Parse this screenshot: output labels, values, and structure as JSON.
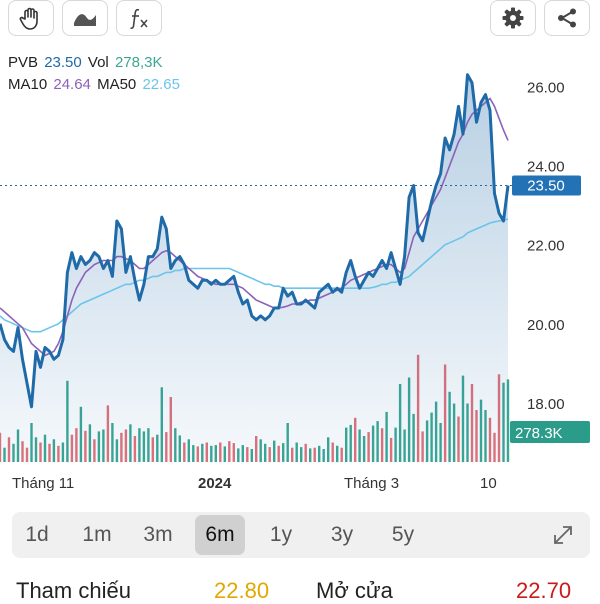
{
  "toolbar": {
    "left_icons": [
      "hand-icon",
      "wave-line-icon",
      "fx-icon"
    ],
    "right_icons": [
      "gear-icon",
      "share-icon"
    ]
  },
  "legend": {
    "symbol": "PVB",
    "price": "23.50",
    "vol_label": "Vol",
    "vol_value": "278,3K",
    "ma10_label": "MA10",
    "ma10_value": "24.64",
    "ma50_label": "MA50",
    "ma50_value": "22.65"
  },
  "colors": {
    "price": "#1f6aa8",
    "ma10": "#8b62b8",
    "ma50": "#6cc4ec",
    "vol_up": "#3aa794",
    "vol_down": "#e2717a",
    "price_badge": "#2372b6",
    "vol_badge": "#2b9c8a"
  },
  "chart_data": {
    "type": "line",
    "y_ticks": [
      "26.00",
      "24.00",
      "22.00",
      "20.00",
      "18.00"
    ],
    "ylim": [
      16.3,
      26.7
    ],
    "x_labels": [
      "Tháng 11",
      "2024",
      "Tháng 3",
      "10"
    ],
    "last_price_label": "23.50",
    "last_volume_label": "278.3K",
    "series": [
      {
        "name": "PVB",
        "values": [
          20,
          19.6,
          19.4,
          19.3,
          19.9,
          19.1,
          18.5,
          17.9,
          19.3,
          18.9,
          19.4,
          19.3,
          19.1,
          19.2,
          19.6,
          21.3,
          21.8,
          21.4,
          21.7,
          21.5,
          21.6,
          21.8,
          21.7,
          21.4,
          21.6,
          21.2,
          22.6,
          22.4,
          21.3,
          21.7,
          21.1,
          20.6,
          21.0,
          21.7,
          21.7,
          21.9,
          22.7,
          22.4,
          21.4,
          21.6,
          21.7,
          21.5,
          21.1,
          21.0,
          20.9,
          21.1,
          21.1,
          21.0,
          21.1,
          21.0,
          21.0,
          21.1,
          21.2,
          20.8,
          20.5,
          20.6,
          20.2,
          20.1,
          20.2,
          20.1,
          20.2,
          20.4,
          20.4,
          20.9,
          20.7,
          20.8,
          20.5,
          20.5,
          20.6,
          20.5,
          20.4,
          20.8,
          20.9,
          21.0,
          20.8,
          20.9,
          20.8,
          21.3,
          21.6,
          21.2,
          20.9,
          21.1,
          21.3,
          21.2,
          21.4,
          21.6,
          21.4,
          21.8,
          21.4,
          21.0,
          21.7,
          23.2,
          23.5,
          22.3,
          22.1,
          22.6,
          23.1,
          23.5,
          23.8,
          24.7,
          24.4,
          24.8,
          25.5,
          24.8,
          26.3,
          26.1,
          25.1,
          25.6,
          25.8,
          25.4,
          23.3,
          22.8,
          22.6,
          23.5
        ]
      },
      {
        "name": "MA10",
        "values": [
          20.4,
          20.3,
          20.2,
          20.1,
          20.0,
          19.9,
          19.7,
          19.5,
          19.4,
          19.3,
          19.2,
          19.25,
          19.3,
          19.5,
          19.8,
          20.2,
          20.6,
          20.9,
          21.1,
          21.3,
          21.4,
          21.5,
          21.55,
          21.6,
          21.6,
          21.6,
          21.7,
          21.7,
          21.65,
          21.6,
          21.5,
          21.4,
          21.4,
          21.5,
          21.6,
          21.7,
          21.8,
          21.85,
          21.8,
          21.7,
          21.6,
          21.5,
          21.4,
          21.3,
          21.2,
          21.15,
          21.1,
          21.05,
          21.0,
          21.0,
          21.0,
          21.0,
          21.0,
          20.95,
          20.9,
          20.8,
          20.7,
          20.6,
          20.55,
          20.5,
          20.45,
          20.4,
          20.4,
          20.42,
          20.45,
          20.5,
          20.5,
          20.55,
          20.55,
          20.6,
          20.6,
          20.65,
          20.7,
          20.75,
          20.8,
          20.85,
          20.9,
          21.0,
          21.1,
          21.15,
          21.2,
          21.25,
          21.3,
          21.35,
          21.4,
          21.45,
          21.5,
          21.5,
          21.4,
          21.3,
          21.4,
          21.8,
          22.2,
          22.4,
          22.6,
          22.8,
          23.0,
          23.2,
          23.4,
          23.7,
          24.0,
          24.3,
          24.6,
          24.8,
          25.1,
          25.3,
          25.4,
          25.5,
          25.6,
          25.7,
          25.5,
          25.2,
          24.9,
          24.64
        ]
      },
      {
        "name": "MA50",
        "values": [
          20.2,
          20.1,
          20.05,
          20.0,
          19.95,
          19.9,
          19.85,
          19.8,
          19.8,
          19.8,
          19.85,
          19.9,
          19.95,
          20.0,
          20.1,
          20.2,
          20.3,
          20.4,
          20.5,
          20.55,
          20.6,
          20.65,
          20.7,
          20.75,
          20.8,
          20.85,
          20.9,
          20.95,
          21.0,
          21.0,
          21.05,
          21.1,
          21.1,
          21.15,
          21.2,
          21.2,
          21.25,
          21.3,
          21.3,
          21.35,
          21.35,
          21.4,
          21.4,
          21.4,
          21.4,
          21.4,
          21.4,
          21.4,
          21.4,
          21.4,
          21.4,
          21.4,
          21.35,
          21.3,
          21.25,
          21.2,
          21.15,
          21.1,
          21.05,
          21.0,
          21.0,
          20.95,
          20.95,
          20.9,
          20.9,
          20.9,
          20.9,
          20.9,
          20.9,
          20.9,
          20.9,
          20.9,
          20.9,
          20.9,
          20.9,
          20.9,
          20.9,
          20.9,
          20.9,
          20.9,
          20.9,
          20.9,
          20.9,
          20.92,
          20.95,
          21.0,
          21.0,
          21.05,
          21.05,
          21.1,
          21.15,
          21.2,
          21.3,
          21.4,
          21.5,
          21.6,
          21.7,
          21.8,
          21.9,
          22.0,
          22.05,
          22.1,
          22.15,
          22.2,
          22.3,
          22.35,
          22.4,
          22.45,
          22.5,
          22.55,
          22.58,
          22.6,
          22.62,
          22.65
        ]
      }
    ],
    "volume": {
      "max": 2000,
      "values": [
        450,
        220,
        380,
        280,
        500,
        320,
        220,
        600,
        380,
        300,
        420,
        280,
        350,
        250,
        300,
        1250,
        420,
        520,
        850,
        480,
        580,
        350,
        470,
        500,
        870,
        600,
        350,
        450,
        500,
        580,
        400,
        520,
        470,
        520,
        380,
        420,
        1150,
        460,
        1000,
        520,
        410,
        300,
        350,
        260,
        240,
        280,
        300,
        250,
        260,
        300,
        240,
        320,
        290,
        210,
        260,
        230,
        200,
        400,
        350,
        280,
        230,
        330,
        250,
        290,
        600,
        220,
        300,
        230,
        280,
        210,
        220,
        250,
        200,
        380,
        300,
        250,
        220,
        530,
        570,
        680,
        500,
        400,
        460,
        560,
        630,
        520,
        770,
        370,
        530,
        1200,
        500,
        1300,
        740,
        1650,
        470,
        640,
        760,
        930,
        600,
        1500,
        1080,
        900,
        700,
        1330,
        900,
        1200,
        800,
        960,
        800,
        680,
        450,
        1350,
        1220,
        1270
      ],
      "up": [
        0,
        1,
        0,
        1,
        1,
        0,
        0,
        1,
        1,
        0,
        1,
        0,
        1,
        0,
        1,
        1,
        0,
        0,
        1,
        0,
        1,
        0,
        1,
        1,
        0,
        1,
        1,
        0,
        0,
        1,
        0,
        1,
        1,
        1,
        0,
        1,
        1,
        0,
        0,
        1,
        1,
        0,
        1,
        1,
        0,
        1,
        0,
        1,
        1,
        0,
        1,
        0,
        0,
        1,
        1,
        0,
        1,
        0,
        1,
        1,
        0,
        1,
        0,
        1,
        1,
        0,
        1,
        1,
        0,
        1,
        0,
        1,
        1,
        1,
        0,
        1,
        0,
        1,
        1,
        0,
        1,
        1,
        0,
        1,
        1,
        0,
        1,
        0,
        1,
        1,
        1,
        1,
        1,
        0,
        0,
        1,
        1,
        1,
        1,
        0,
        1,
        1,
        0,
        1,
        1,
        0,
        0,
        1,
        1,
        0,
        0,
        0,
        1,
        1
      ]
    }
  },
  "periods": [
    "1d",
    "1m",
    "3m",
    "6m",
    "1y",
    "3y",
    "5y"
  ],
  "active_period": "6m",
  "stats": {
    "ref_label": "Tham chiếu",
    "ref_value": "22.80",
    "open_label": "Mở cửa",
    "open_value": "22.70"
  }
}
